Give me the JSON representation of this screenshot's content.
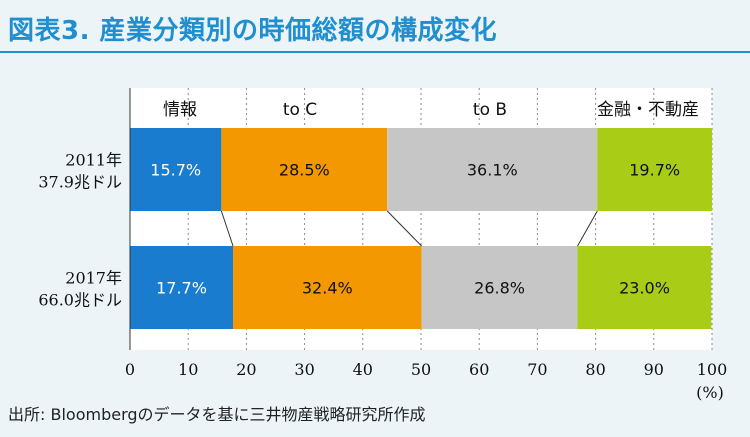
{
  "title": "図表3. 産業分類別の時価総額の構成変化",
  "source": "出所: Bloombergのデータを基に三井物産戦略研究所作成",
  "colors": {
    "background": "#ecf4f8",
    "title": "#1f8fd0",
    "series": [
      "#1a7ccf",
      "#f39800",
      "#c6c6c6",
      "#a9cc16"
    ]
  },
  "chart_data": {
    "type": "bar",
    "orientation": "horizontal",
    "stacked": true,
    "categories": [
      {
        "year": "2011年",
        "total": "37.9兆ドル"
      },
      {
        "year": "2017年",
        "total": "66.0兆ドル"
      }
    ],
    "series": [
      {
        "name": "情報",
        "values": [
          15.7,
          17.7
        ],
        "labels": [
          "15.7%",
          "17.7%"
        ]
      },
      {
        "name": "to C",
        "values": [
          28.5,
          32.4
        ],
        "labels": [
          "28.5%",
          "32.4%"
        ]
      },
      {
        "name": "to B",
        "values": [
          36.1,
          26.8
        ],
        "labels": [
          "36.1%",
          "26.8%"
        ]
      },
      {
        "name": "金融・不動産",
        "values": [
          19.7,
          23.0
        ],
        "labels": [
          "19.7%",
          "23.0%"
        ]
      }
    ],
    "xlim": [
      0,
      100
    ],
    "xticks": [
      "0",
      "10",
      "20",
      "30",
      "40",
      "50",
      "60",
      "70",
      "80",
      "90",
      "100"
    ],
    "xunit": "(%)",
    "grid": "vertical dashed",
    "connector_lines": true
  }
}
